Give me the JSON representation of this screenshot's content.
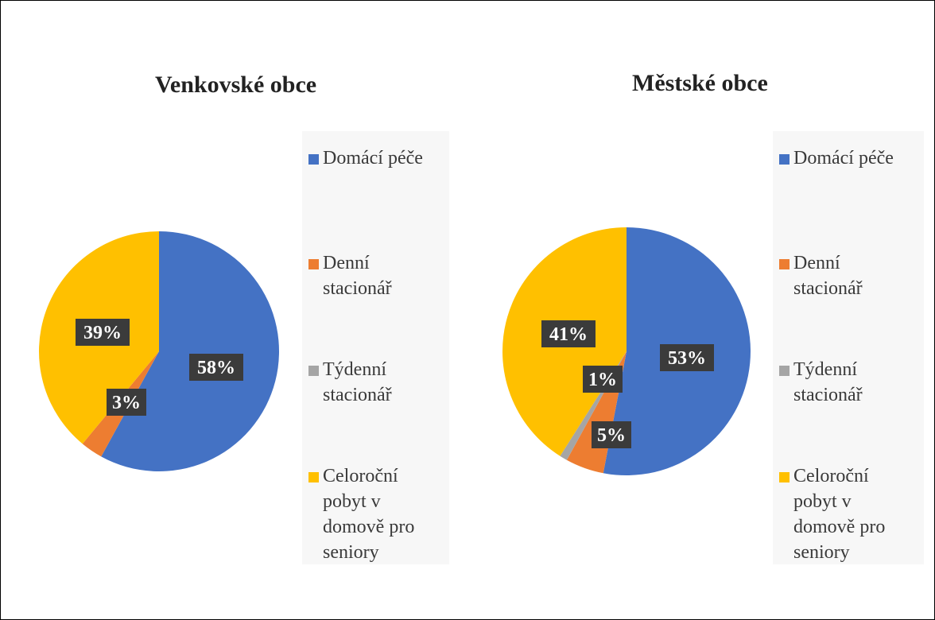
{
  "chart_data": [
    {
      "type": "pie",
      "title": "Venkovské obce",
      "categories": [
        "Domácí péče",
        "Denní stacionář",
        "Týdenní stacionář",
        "Celoroční pobyt v domově pro seniory"
      ],
      "values": [
        58,
        3,
        0,
        39
      ],
      "labels": [
        "58%",
        "3%",
        "",
        "39%"
      ],
      "legend_position": "right"
    },
    {
      "type": "pie",
      "title": "Městské obce",
      "categories": [
        "Domácí péče",
        "Denní stacionář",
        "Týdenní stacionář",
        "Celoroční pobyt v domově pro seniory"
      ],
      "values": [
        53,
        5,
        1,
        41
      ],
      "labels": [
        "53%",
        "5%",
        "1%",
        "41%"
      ],
      "legend_position": "right"
    }
  ],
  "colors": [
    "#4472c4",
    "#ed7d31",
    "#a5a5a5",
    "#ffc000"
  ],
  "legend": {
    "items": [
      "Domácí péče",
      "Denní stacionář",
      "Týdenní stacionář",
      "Celoroční pobyt v domově pro seniory"
    ]
  }
}
